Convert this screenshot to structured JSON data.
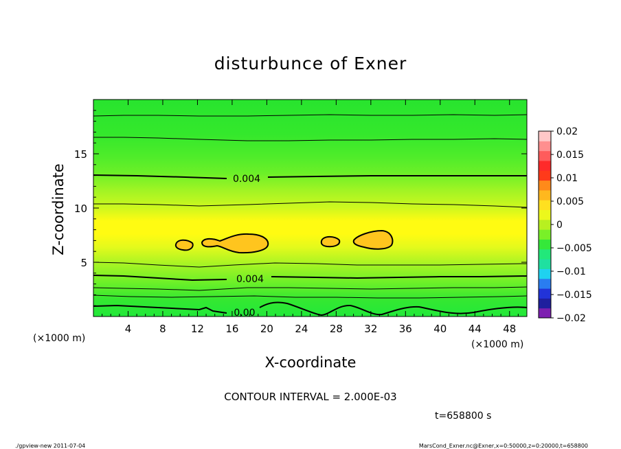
{
  "chart_data": {
    "type": "contour",
    "title": "disturbunce of Exner",
    "xlabel": "X-coordinate",
    "ylabel": "Z-coordinate",
    "x_unit_left": "(×1000 m)",
    "x_unit_right": "(×1000 m)",
    "x_ticks": [
      4,
      8,
      12,
      16,
      20,
      24,
      28,
      32,
      36,
      40,
      44,
      48
    ],
    "y_ticks": [
      5,
      10,
      15
    ],
    "xlim": [
      0,
      50
    ],
    "ylim": [
      0,
      20
    ],
    "contour_labels": [
      "0.004",
      "0.004",
      "0.00"
    ],
    "contour_interval": "CONTOUR INTERVAL = 2.000E-03",
    "time_label": "t=658800 s",
    "colorbar": {
      "ticks": [
        "0.02",
        "0.015",
        "0.01",
        "0.005",
        "0",
        "−0.005",
        "−0.01",
        "−0.015",
        "−0.02"
      ],
      "range": [
        -0.02,
        0.02
      ],
      "colors": [
        "#7d1fb0",
        "#1f1f9e",
        "#2233d8",
        "#2a7df0",
        "#1fd2f0",
        "#1fe0a0",
        "#22e87a",
        "#35e83a",
        "#79f028",
        "#b8f020",
        "#ecf81c",
        "#ffe020",
        "#ffb81e",
        "#ff8a1a",
        "#ff3a1a",
        "#ff2a2a",
        "#ff5c5c",
        "#ff8f8f",
        "#ffc8c8"
      ]
    },
    "field_profile_z_km": [
      0,
      1,
      2,
      3,
      4,
      5,
      6,
      7,
      8,
      9,
      10,
      11,
      12,
      13,
      14,
      15,
      16,
      17,
      18,
      19,
      20
    ],
    "field_profile_value": [
      0.0,
      0.0012,
      0.0025,
      0.004,
      0.0056,
      0.0072,
      0.0086,
      0.0092,
      0.0087,
      0.0075,
      0.0064,
      0.0056,
      0.0048,
      0.004,
      0.0031,
      0.0024,
      0.0018,
      0.0013,
      0.0009,
      0.0006,
      0.0004
    ]
  },
  "footer": {
    "left": "./gpview-new   2011-07-04",
    "right": "MarsCond_Exner.nc@Exner,x=0:50000,z=0:20000,t=658800"
  }
}
